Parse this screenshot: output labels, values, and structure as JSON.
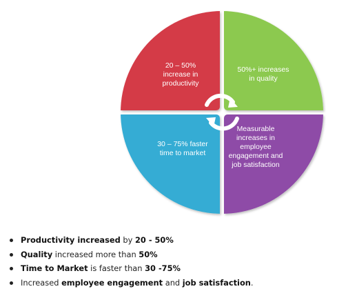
{
  "quadrants": [
    {
      "id": "top-left",
      "lines": [
        "20 – 50%",
        "increase in",
        "productivity"
      ],
      "color": "#d43a47"
    },
    {
      "id": "top-right",
      "lines": [
        "50%+ increases",
        "in quality"
      ],
      "color": "#8cc94f"
    },
    {
      "id": "bottom-left",
      "lines": [
        "30 – 75% faster",
        "time to market"
      ],
      "color": "#34acd4"
    },
    {
      "id": "bottom-right",
      "lines": [
        "Measurable",
        "increases in",
        "employee",
        "engagement and",
        "job satisfaction"
      ],
      "color": "#8e4ba7"
    }
  ],
  "bullets": [
    [
      {
        "t": "Productivity increased",
        "b": true
      },
      {
        "t": " by ",
        "b": false
      },
      {
        "t": "20 - 50%",
        "b": true
      }
    ],
    [
      {
        "t": "Quality",
        "b": true
      },
      {
        "t": " increased more than ",
        "b": false
      },
      {
        "t": "50%",
        "b": true
      }
    ],
    [
      {
        "t": "Time to Market",
        "b": true
      },
      {
        "t": " is faster than ",
        "b": false
      },
      {
        "t": "30 -75%",
        "b": true
      }
    ],
    [
      {
        "t": "Increased ",
        "b": false
      },
      {
        "t": "employee engagement",
        "b": true
      },
      {
        "t": " and ",
        "b": false
      },
      {
        "t": "job satisfaction",
        "b": true
      },
      {
        "t": ".",
        "b": false
      }
    ]
  ]
}
